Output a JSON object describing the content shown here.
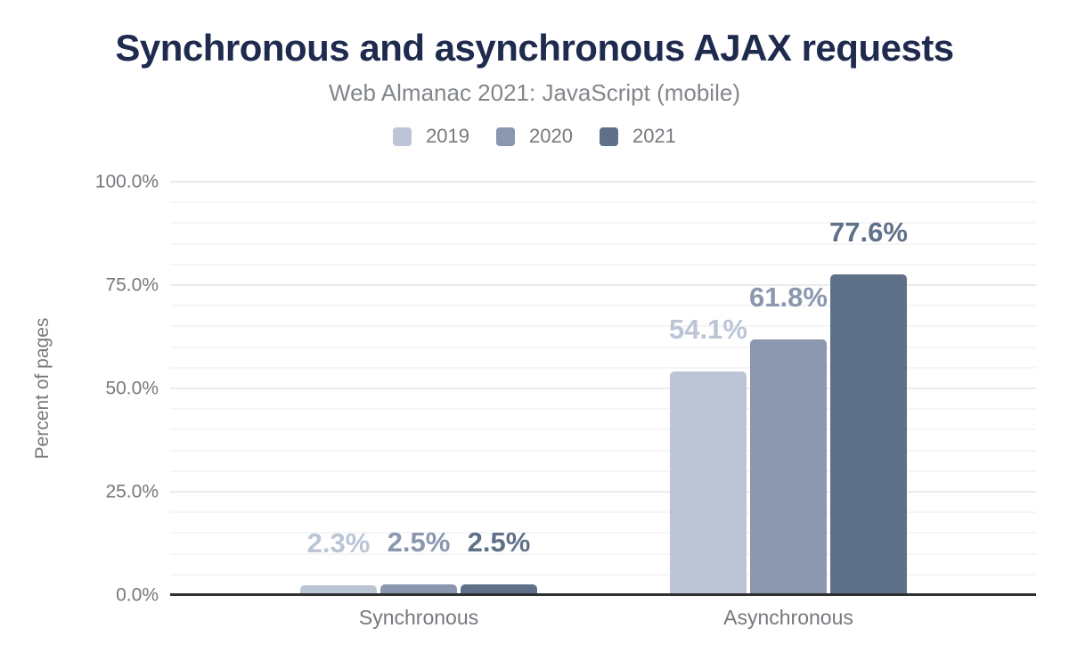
{
  "chart_data": {
    "type": "bar",
    "title": "Synchronous and asynchronous AJAX requests",
    "subtitle": "Web Almanac 2021: JavaScript (mobile)",
    "ylabel": "Percent of pages",
    "categories": [
      "Synchronous",
      "Asynchronous"
    ],
    "series": [
      {
        "name": "2019",
        "color": "#bcc5d6",
        "values": [
          2.3,
          54.1
        ],
        "labels": [
          "2.3%",
          "54.1%"
        ]
      },
      {
        "name": "2020",
        "color": "#8b97ae",
        "values": [
          2.5,
          61.8
        ],
        "labels": [
          "2.5%",
          "61.8%"
        ]
      },
      {
        "name": "2021",
        "color": "#5f7089",
        "values": [
          2.5,
          77.6
        ],
        "labels": [
          "2.5%",
          "77.6%"
        ]
      }
    ],
    "ylim": [
      0,
      100
    ],
    "yticks": [
      0,
      25,
      50,
      75,
      100
    ],
    "ytick_labels": [
      "0.0%",
      "25.0%",
      "50.0%",
      "75.0%",
      "100.0%"
    ],
    "minor_grid_step": 5,
    "major_grid_step": 25,
    "grid": true,
    "legend_position": "top"
  },
  "colors": {
    "title": "#1f2b4e",
    "muted_text": "#75787d",
    "subtitle_text": "#82868b",
    "axis_line": "#303030",
    "grid_minor": "#f5f5f5",
    "grid_major": "#ebebeb",
    "background": "#ffffff"
  }
}
